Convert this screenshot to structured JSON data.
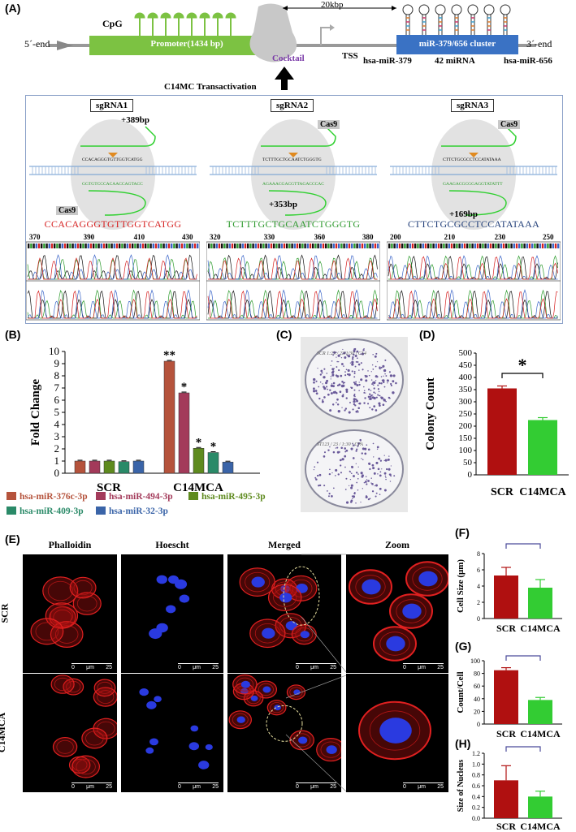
{
  "panels": {
    "A": "(A)",
    "B": "(B)",
    "C": "(C)",
    "D": "(D)",
    "E": "(E)",
    "F": "(F)",
    "G": "(G)",
    "H": "(H)"
  },
  "panelA": {
    "cpg": "CpG",
    "five_end": "5´-end",
    "three_end": "3´-end",
    "promoter": "Promoter(1434 bp)",
    "cocktail": "Cocktail",
    "tss": "TSS",
    "distance": "20kbp",
    "cluster": "miR-379/656 cluster",
    "mir_left": "hsa-miR-379",
    "mir_count": "42 miRNA",
    "mir_right": "hsa-miR-656",
    "transactivation": "C14MC Transactivation",
    "sgrnas": [
      {
        "title": "sgRNA1",
        "pos": "+389bp",
        "cas": "Cas9",
        "seq": "CCACAGGGTGTTGGTCATGG",
        "seq_color": "#d62020",
        "ticks": [
          "370",
          "390",
          "410",
          "430"
        ],
        "top_seq": "CCACAGGGTGTTGGTCATGG",
        "bot_seq": "GGTGTCCCACAACCAGTACC"
      },
      {
        "title": "sgRNA2",
        "pos": "+353bp",
        "cas": "Cas9",
        "seq": "TCTTTGCTGCAATCTGGGTG",
        "seq_color": "#2e9a2e",
        "ticks": [
          "320",
          "330",
          "360",
          "380"
        ],
        "top_seq": "TCTTTGCTGCAATCTGGGTG",
        "bot_seq": "AGAAACGACGTTAGACCCAC"
      },
      {
        "title": "sgRNA3",
        "pos": "+169bp",
        "cas": "Cas9",
        "seq": "CTTCTGCGCCTCCATATAAA",
        "seq_color": "#23407a",
        "ticks": [
          "200",
          "210",
          "230",
          "250"
        ],
        "top_seq": "CTTCTGCGCCTCCATATAAA",
        "bot_seq": "GAAGACGCGGAGGTATATTT"
      }
    ]
  },
  "chart_data": [
    {
      "id": "B",
      "type": "bar",
      "ylabel": "Fold Change",
      "ylim": [
        0,
        10
      ],
      "yticks": [
        "0",
        "1",
        "2",
        "3",
        "4",
        "5",
        "6",
        "7",
        "8",
        "9",
        "10"
      ],
      "categories": [
        "SCR",
        "C14MCA"
      ],
      "series": [
        {
          "name": "hsa-miR-376c-3p",
          "color": "#b5533c",
          "values": [
            1.0,
            9.2
          ],
          "sig": [
            "",
            "**"
          ]
        },
        {
          "name": "hsa-miR-494-3p",
          "color": "#a33a5a",
          "values": [
            1.0,
            6.6
          ],
          "sig": [
            "",
            "*"
          ]
        },
        {
          "name": "hsa-miR-495-3p",
          "color": "#5e8a1e",
          "values": [
            1.0,
            2.05
          ],
          "sig": [
            "",
            "*"
          ]
        },
        {
          "name": "hsa-miR-409-3p",
          "color": "#2a8a68",
          "values": [
            0.95,
            1.7
          ],
          "sig": [
            "",
            "*"
          ]
        },
        {
          "name": "hsa-miR-32-3p",
          "color": "#3a64a8",
          "values": [
            1.0,
            0.92
          ],
          "sig": [
            "",
            ""
          ]
        }
      ]
    },
    {
      "id": "D",
      "type": "bar",
      "ylabel": "Colony Count",
      "ylim": [
        0,
        500
      ],
      "yticks": [
        "0",
        "50",
        "100",
        "150",
        "200",
        "250",
        "300",
        "350",
        "400",
        "450",
        "500"
      ],
      "categories": [
        "SCR",
        "C14MCA"
      ],
      "values": [
        355,
        225
      ],
      "errors": [
        10,
        10
      ],
      "colors": [
        "#b01010",
        "#33cc33"
      ],
      "sig": "*"
    },
    {
      "id": "F",
      "type": "bar",
      "ylabel": "Cell Size (μm)",
      "ylim": [
        0,
        8
      ],
      "yticks": [
        "0",
        "2",
        "4",
        "6",
        "8"
      ],
      "categories": [
        "SCR",
        "C14MCA"
      ],
      "values": [
        5.3,
        3.8
      ],
      "errors": [
        1.0,
        1.0
      ],
      "colors": [
        "#b01010",
        "#33cc33"
      ],
      "sig": "*"
    },
    {
      "id": "G",
      "type": "bar",
      "ylabel": "Count/Cell",
      "ylim": [
        0,
        100
      ],
      "yticks": [
        "0",
        "20",
        "40",
        "60",
        "80",
        "100"
      ],
      "categories": [
        "SCR",
        "C14MCA"
      ],
      "values": [
        85,
        38
      ],
      "errors": [
        4,
        4
      ],
      "colors": [
        "#b01010",
        "#33cc33"
      ],
      "sig": "*"
    },
    {
      "id": "H",
      "type": "bar",
      "ylabel": "Size of Nucleus",
      "ylim": [
        0,
        1.2
      ],
      "yticks": [
        "0.0",
        "0.2",
        "0.4",
        "0.6",
        "0.8",
        "1.0",
        "1.2"
      ],
      "categories": [
        "SCR",
        "C14MCA"
      ],
      "values": [
        0.7,
        0.4
      ],
      "errors": [
        0.27,
        0.1
      ],
      "colors": [
        "#b01010",
        "#33cc33"
      ],
      "sig": "*"
    }
  ],
  "panelC": {
    "plate1": "SCR 1:23 / 23/1/30 | C14",
    "plate2": "ST123 / 23 / 1:30 | CPA"
  },
  "panelE": {
    "cols": [
      "Phalloidin",
      "Hoescht",
      "Merged",
      "Zoom"
    ],
    "rows": [
      "SCR",
      "C14MCA"
    ],
    "scale": {
      "zero": "0",
      "unit": "μm",
      "val": "25"
    }
  }
}
